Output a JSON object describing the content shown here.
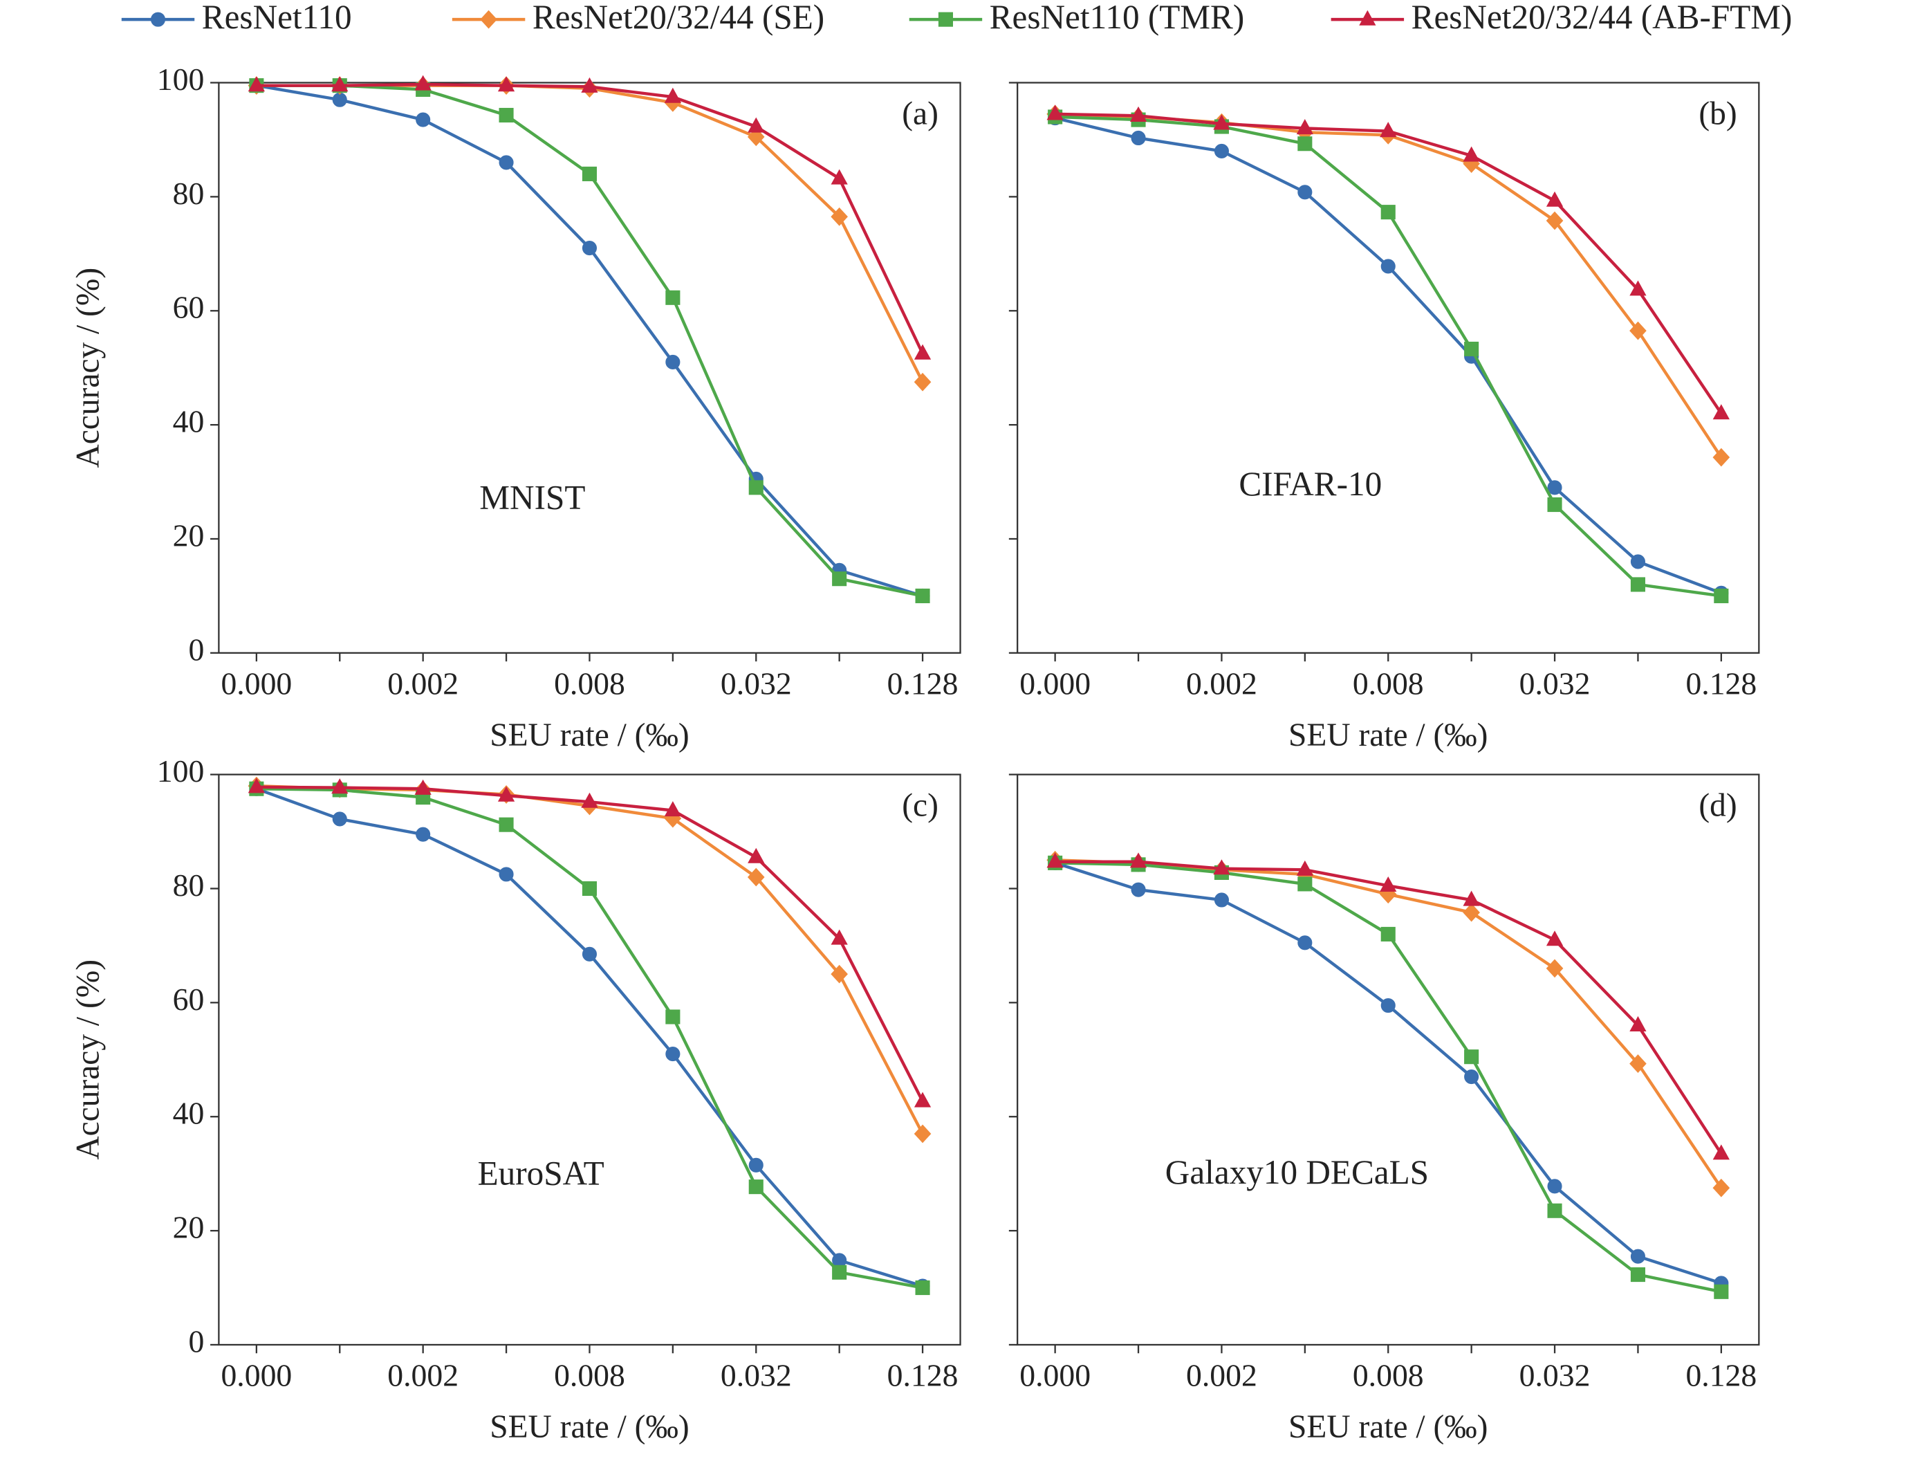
{
  "chart_data": [
    {
      "type": "line",
      "panel_label": "(a)",
      "annotation": "MNIST",
      "ylabel": "Accuracy / (%)",
      "xlabel": "SEU rate / (‰)",
      "categories": [
        "0.000",
        null,
        "0.002",
        null,
        "0.008",
        null,
        "0.032",
        null,
        "0.128"
      ],
      "ylim": [
        0,
        100
      ],
      "yticks": [
        0,
        20,
        40,
        60,
        80,
        100
      ],
      "ytick_labels": true,
      "series": [
        {
          "name": "ResNet110",
          "color": "#3a6fb0",
          "marker": "circle",
          "values": [
            99.5,
            97,
            93.5,
            86,
            71,
            51,
            30.5,
            14.5,
            10
          ]
        },
        {
          "name": "ResNet20/32/44 (SE)",
          "color": "#f08a3a",
          "marker": "diamond",
          "values": [
            99.5,
            99.5,
            99.5,
            99.5,
            99,
            96.5,
            90.5,
            76.5,
            47.5
          ]
        },
        {
          "name": "ResNet110 (TMR)",
          "color": "#4ea84a",
          "marker": "square",
          "values": [
            99.5,
            99.5,
            98.8,
            94.3,
            84,
            62.3,
            29,
            13,
            10
          ]
        },
        {
          "name": "ResNet20/32/44 (AB-FTM)",
          "color": "#c8203f",
          "marker": "triangle",
          "values": [
            99.5,
            99.5,
            99.7,
            99.5,
            99.3,
            97.5,
            92.3,
            83.2,
            52.5
          ]
        }
      ]
    },
    {
      "type": "line",
      "panel_label": "(b)",
      "annotation": "CIFAR-10",
      "xlabel": "SEU rate / (‰)",
      "categories": [
        "0.000",
        null,
        "0.002",
        null,
        "0.008",
        null,
        "0.032",
        null,
        "0.128"
      ],
      "ylim": [
        0,
        100
      ],
      "yticks": [
        0,
        20,
        40,
        60,
        80,
        100
      ],
      "ytick_labels": false,
      "series": [
        {
          "color": "#3a6fb0",
          "marker": "circle",
          "values": [
            93.8,
            90.3,
            88,
            80.8,
            67.8,
            52,
            29,
            16,
            10.5
          ]
        },
        {
          "color": "#f08a3a",
          "marker": "diamond",
          "values": [
            94.5,
            94,
            93,
            91.3,
            90.8,
            85.8,
            75.8,
            56.5,
            34.3
          ]
        },
        {
          "color": "#4ea84a",
          "marker": "square",
          "values": [
            94,
            93.5,
            92.3,
            89.3,
            77.3,
            53.3,
            26,
            12,
            10
          ]
        },
        {
          "color": "#c8203f",
          "marker": "triangle",
          "values": [
            94.5,
            94.2,
            92.8,
            92,
            91.5,
            87.2,
            79.3,
            63.7,
            42
          ]
        }
      ]
    },
    {
      "type": "line",
      "panel_label": "(c)",
      "annotation": "EuroSAT",
      "ylabel": "Accuracy / (%)",
      "xlabel": "SEU rate / (‰)",
      "categories": [
        "0.000",
        null,
        "0.002",
        null,
        "0.008",
        null,
        "0.032",
        null,
        "0.128"
      ],
      "ylim": [
        0,
        100
      ],
      "yticks": [
        0,
        20,
        40,
        60,
        80,
        100
      ],
      "ytick_labels": true,
      "series": [
        {
          "color": "#3a6fb0",
          "marker": "circle",
          "values": [
            97.5,
            92.2,
            89.5,
            82.5,
            68.5,
            51,
            31.5,
            14.8,
            10.3
          ]
        },
        {
          "color": "#f08a3a",
          "marker": "diamond",
          "values": [
            98,
            97.5,
            97.3,
            96.5,
            94.5,
            92.3,
            82,
            65,
            37
          ]
        },
        {
          "color": "#4ea84a",
          "marker": "square",
          "values": [
            97.5,
            97.3,
            96,
            91.2,
            80,
            57.5,
            27.7,
            12.7,
            10
          ]
        },
        {
          "color": "#c8203f",
          "marker": "triangle",
          "values": [
            97.8,
            97.7,
            97.5,
            96.3,
            95.2,
            93.7,
            85.5,
            71.2,
            42.7
          ]
        }
      ]
    },
    {
      "type": "line",
      "panel_label": "(d)",
      "annotation": "Galaxy10 DECaLS",
      "xlabel": "SEU rate / (‰)",
      "categories": [
        "0.000",
        null,
        "0.002",
        null,
        "0.008",
        null,
        "0.032",
        null,
        "0.128"
      ],
      "ylim": [
        0,
        100
      ],
      "yticks": [
        0,
        20,
        40,
        60,
        80,
        100
      ],
      "ytick_labels": false,
      "series": [
        {
          "color": "#3a6fb0",
          "marker": "circle",
          "values": [
            84.5,
            79.8,
            78,
            70.5,
            59.5,
            47,
            27.8,
            15.5,
            10.8
          ]
        },
        {
          "color": "#f08a3a",
          "marker": "diamond",
          "values": [
            85,
            84.5,
            83.3,
            82.5,
            79,
            75.8,
            66,
            49.3,
            27.5
          ]
        },
        {
          "color": "#4ea84a",
          "marker": "square",
          "values": [
            84.5,
            84.2,
            82.8,
            80.8,
            72,
            50.5,
            23.5,
            12.3,
            9.3
          ]
        },
        {
          "color": "#c8203f",
          "marker": "triangle",
          "values": [
            84.7,
            84.7,
            83.5,
            83.3,
            80.5,
            78,
            71,
            56,
            33.5
          ]
        }
      ]
    }
  ]
}
